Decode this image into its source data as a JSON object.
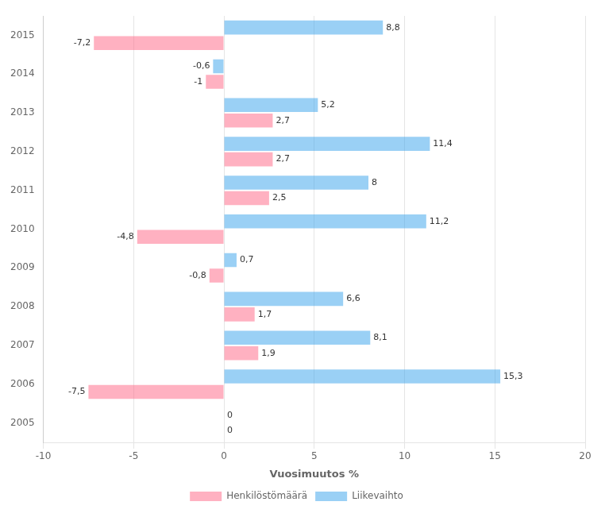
{
  "chart_data": {
    "type": "bar",
    "orientation": "horizontal",
    "categories": [
      "2015",
      "2014",
      "2013",
      "2012",
      "2011",
      "2010",
      "2009",
      "2008",
      "2007",
      "2006",
      "2005"
    ],
    "series": [
      {
        "name": "Liikevaihto",
        "values": [
          8.8,
          -0.6,
          5.2,
          11.4,
          8.0,
          11.2,
          0.7,
          6.6,
          8.1,
          15.3,
          0
        ],
        "value_labels": [
          "8,8",
          "-0,6",
          "5,2",
          "11,4",
          "8",
          "11,2",
          "0,7",
          "6,6",
          "8,1",
          "15,3",
          "0"
        ]
      },
      {
        "name": "Henkilöstömäärä",
        "values": [
          -7.2,
          -1.0,
          2.7,
          2.7,
          2.5,
          -4.8,
          -0.8,
          1.7,
          1.9,
          -7.5,
          0
        ],
        "value_labels": [
          "-7,2",
          "-1",
          "2,7",
          "2,7",
          "2,5",
          "-4,8",
          "-0,8",
          "1,7",
          "1,9",
          "-7,5",
          "0"
        ]
      }
    ],
    "xlabel": "Vuosimuutos %",
    "xlim": [
      -10,
      20
    ],
    "xticks": [
      -10,
      -5,
      0,
      5,
      10,
      15,
      20
    ],
    "grid": true,
    "legend": "bottom",
    "data_labels": true
  }
}
